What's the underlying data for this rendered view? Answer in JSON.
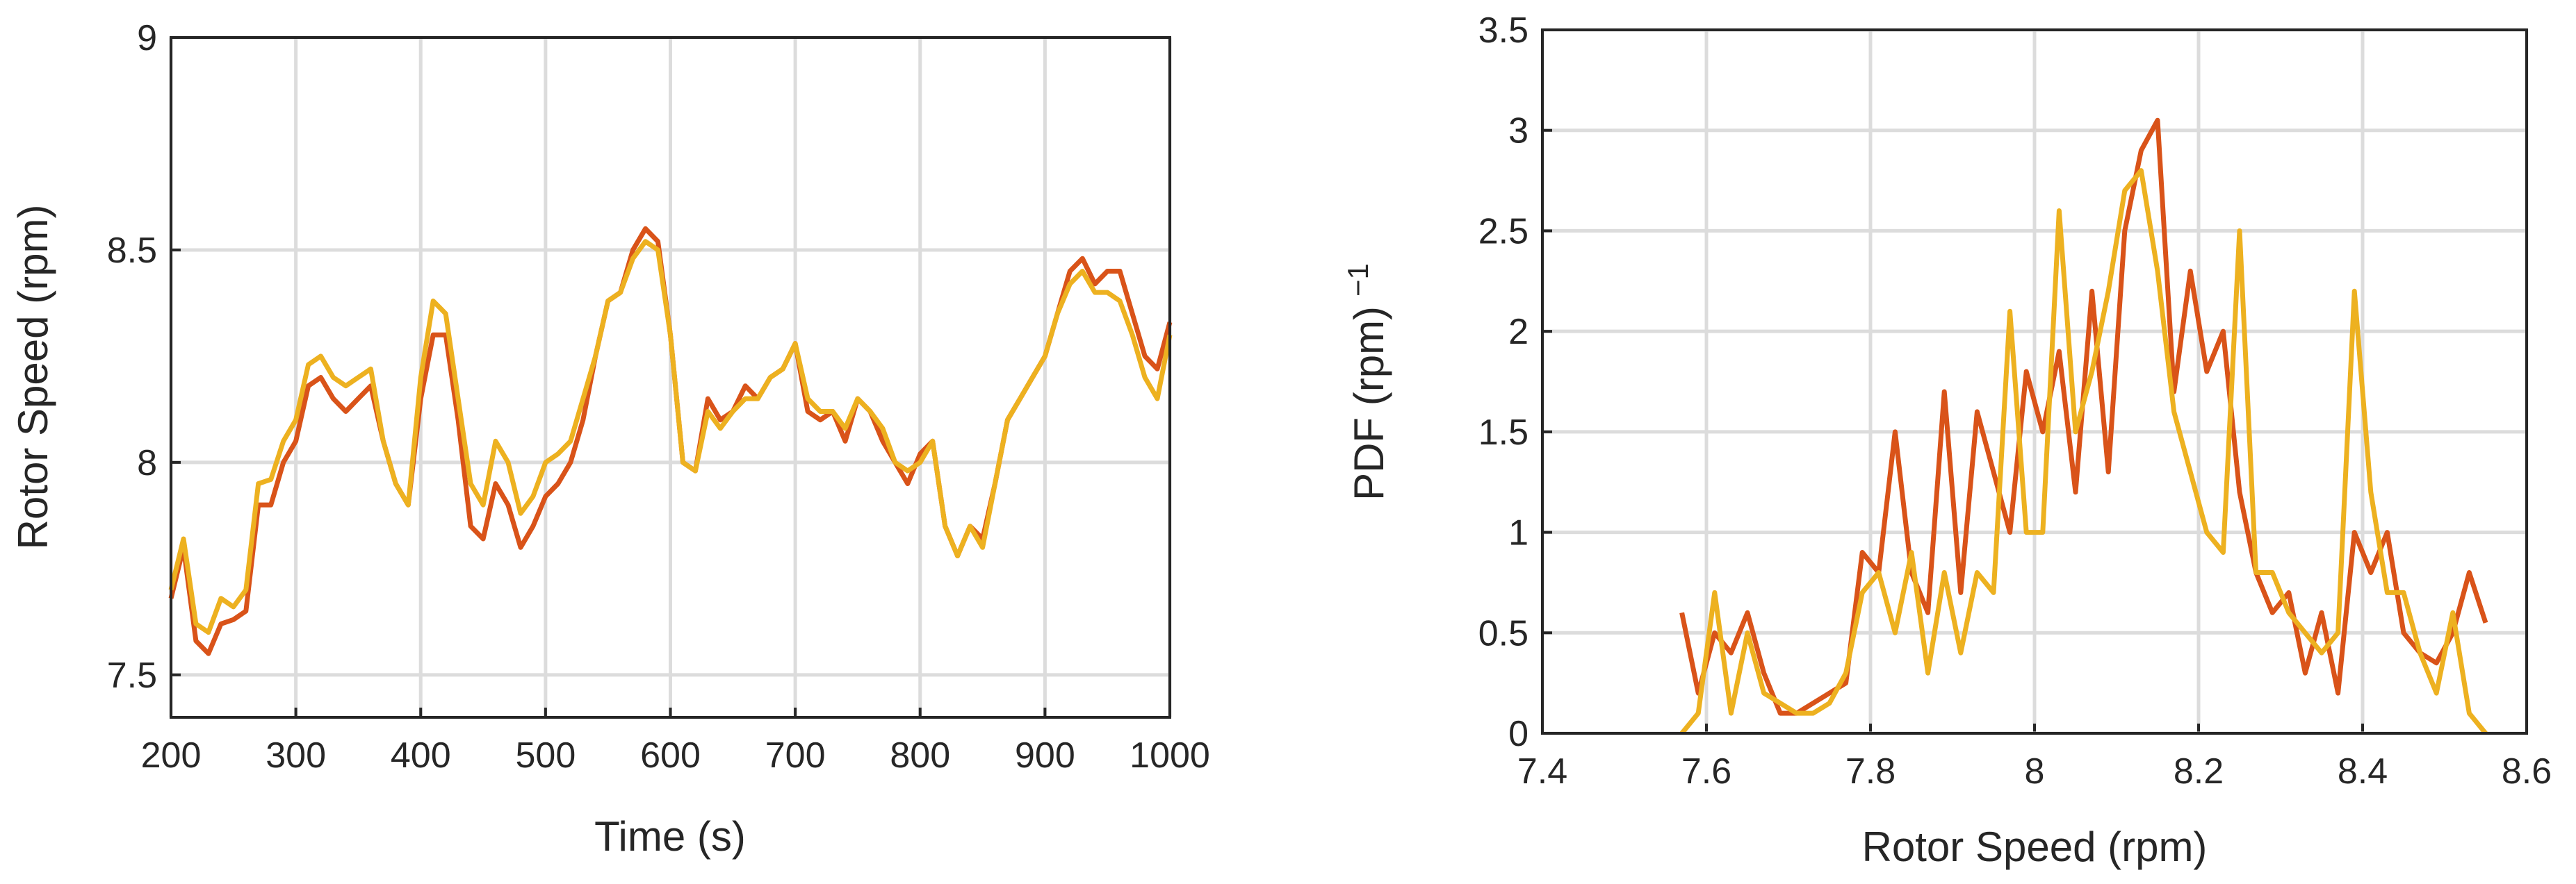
{
  "chart_data": [
    {
      "type": "line",
      "xlabel": "Time (s)",
      "ylabel": "Rotor Speed (rpm)",
      "xlim": [
        200,
        1000
      ],
      "xticks": [
        200,
        300,
        400,
        500,
        600,
        700,
        800,
        900,
        1000
      ],
      "ylim": [
        7.4,
        9
      ],
      "yticks": [
        7.5,
        8,
        8.5,
        9
      ],
      "grid": true,
      "x": [
        200,
        210,
        220,
        230,
        240,
        250,
        260,
        270,
        280,
        290,
        300,
        310,
        320,
        330,
        340,
        350,
        360,
        370,
        380,
        390,
        400,
        410,
        420,
        430,
        440,
        450,
        460,
        470,
        480,
        490,
        500,
        510,
        520,
        530,
        540,
        550,
        560,
        570,
        580,
        590,
        600,
        610,
        620,
        630,
        640,
        650,
        660,
        670,
        680,
        690,
        700,
        710,
        720,
        730,
        740,
        750,
        760,
        770,
        780,
        790,
        800,
        810,
        820,
        830,
        840,
        850,
        860,
        870,
        880,
        890,
        900,
        910,
        920,
        930,
        940,
        950,
        960,
        970,
        980,
        990,
        1000
      ],
      "series": [
        {
          "color": "#d95319",
          "values": [
            7.68,
            7.8,
            7.58,
            7.55,
            7.62,
            7.63,
            7.65,
            7.9,
            7.9,
            8.0,
            8.05,
            8.18,
            8.2,
            8.15,
            8.12,
            8.15,
            8.18,
            8.05,
            7.95,
            7.9,
            8.15,
            8.3,
            8.3,
            8.1,
            7.85,
            7.82,
            7.95,
            7.9,
            7.8,
            7.85,
            7.92,
            7.95,
            8.0,
            8.1,
            8.25,
            8.38,
            8.4,
            8.5,
            8.55,
            8.52,
            8.3,
            8.0,
            7.98,
            8.15,
            8.1,
            8.12,
            8.18,
            8.15,
            8.2,
            8.22,
            8.28,
            8.12,
            8.1,
            8.12,
            8.05,
            8.15,
            8.12,
            8.05,
            8.0,
            7.95,
            8.02,
            8.05,
            7.85,
            7.78,
            7.85,
            7.82,
            7.95,
            8.1,
            8.15,
            8.2,
            8.25,
            8.35,
            8.45,
            8.48,
            8.42,
            8.45,
            8.45,
            8.35,
            8.25,
            8.22,
            8.33
          ]
        },
        {
          "color": "#edb120",
          "values": [
            7.7,
            7.82,
            7.62,
            7.6,
            7.68,
            7.66,
            7.7,
            7.95,
            7.96,
            8.05,
            8.1,
            8.23,
            8.25,
            8.2,
            8.18,
            8.2,
            8.22,
            8.05,
            7.95,
            7.9,
            8.2,
            8.38,
            8.35,
            8.15,
            7.95,
            7.9,
            8.05,
            8.0,
            7.88,
            7.92,
            8.0,
            8.02,
            8.05,
            8.15,
            8.25,
            8.38,
            8.4,
            8.48,
            8.52,
            8.5,
            8.3,
            8.0,
            7.98,
            8.12,
            8.08,
            8.12,
            8.15,
            8.15,
            8.2,
            8.22,
            8.28,
            8.15,
            8.12,
            8.12,
            8.08,
            8.15,
            8.12,
            8.08,
            8.0,
            7.98,
            8.0,
            8.05,
            7.85,
            7.78,
            7.85,
            7.8,
            7.95,
            8.1,
            8.15,
            8.2,
            8.25,
            8.35,
            8.42,
            8.45,
            8.4,
            8.4,
            8.38,
            8.3,
            8.2,
            8.15,
            8.3
          ]
        }
      ]
    },
    {
      "type": "line",
      "xlabel": "Rotor Speed (rpm)",
      "ylabel": "PDF (rpm)",
      "ylabel_superscript": "−1",
      "xlim": [
        7.4,
        8.6
      ],
      "xticks": [
        7.4,
        7.6,
        7.8,
        8,
        8.2,
        8.4,
        8.6
      ],
      "ylim": [
        0,
        3.5
      ],
      "yticks": [
        0,
        0.5,
        1,
        1.5,
        2,
        2.5,
        3,
        3.5
      ],
      "grid": true,
      "x": [
        7.57,
        7.59,
        7.61,
        7.63,
        7.65,
        7.67,
        7.69,
        7.71,
        7.73,
        7.75,
        7.77,
        7.79,
        7.81,
        7.83,
        7.85,
        7.87,
        7.89,
        7.91,
        7.93,
        7.95,
        7.97,
        7.99,
        8.01,
        8.03,
        8.05,
        8.07,
        8.09,
        8.11,
        8.13,
        8.15,
        8.17,
        8.19,
        8.21,
        8.23,
        8.25,
        8.27,
        8.29,
        8.31,
        8.33,
        8.35,
        8.37,
        8.39,
        8.41,
        8.43,
        8.45,
        8.47,
        8.49,
        8.51,
        8.53,
        8.55
      ],
      "series": [
        {
          "color": "#d95319",
          "values": [
            0.6,
            0.2,
            0.5,
            0.4,
            0.6,
            0.3,
            0.1,
            0.1,
            0.15,
            0.2,
            0.25,
            0.9,
            0.8,
            1.5,
            0.8,
            0.6,
            1.7,
            0.7,
            1.6,
            1.3,
            1.0,
            1.8,
            1.5,
            1.9,
            1.2,
            2.2,
            1.3,
            2.5,
            2.9,
            3.05,
            1.7,
            2.3,
            1.8,
            2.0,
            1.2,
            0.8,
            0.6,
            0.7,
            0.3,
            0.6,
            0.2,
            1.0,
            0.8,
            1.0,
            0.5,
            0.4,
            0.35,
            0.5,
            0.8,
            0.55
          ]
        },
        {
          "color": "#edb120",
          "values": [
            0.0,
            0.1,
            0.7,
            0.1,
            0.5,
            0.2,
            0.15,
            0.1,
            0.1,
            0.15,
            0.3,
            0.7,
            0.8,
            0.5,
            0.9,
            0.3,
            0.8,
            0.4,
            0.8,
            0.7,
            2.1,
            1.0,
            1.0,
            2.6,
            1.5,
            1.8,
            2.2,
            2.7,
            2.8,
            2.3,
            1.6,
            1.3,
            1.0,
            0.9,
            2.5,
            0.8,
            0.8,
            0.6,
            0.5,
            0.4,
            0.5,
            2.2,
            1.2,
            0.7,
            0.7,
            0.4,
            0.2,
            0.6,
            0.1,
            0.0
          ]
        }
      ]
    }
  ]
}
